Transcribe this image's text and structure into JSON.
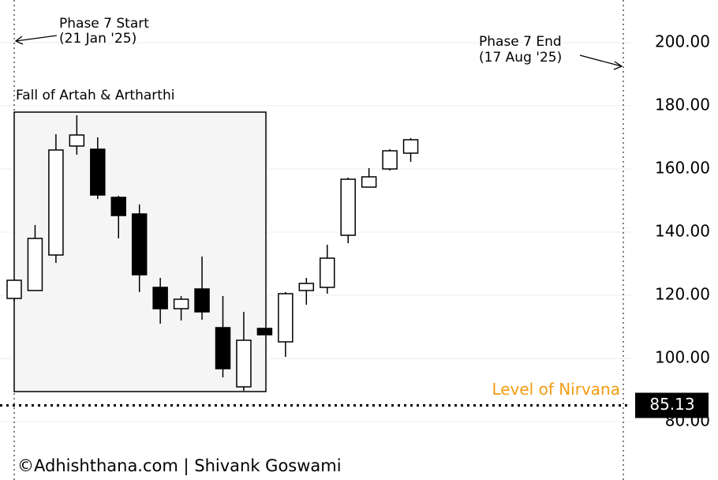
{
  "chart_data": {
    "type": "candlestick",
    "categories": [
      null,
      null,
      null,
      null,
      null,
      null,
      null,
      null,
      null,
      null,
      null,
      null,
      null,
      null,
      null,
      null,
      null,
      null,
      null,
      null
    ],
    "open": [
      119,
      121.5,
      132.75,
      167.25,
      166.25,
      151,
      145.75,
      122.5,
      115.75,
      122,
      109.75,
      91,
      109.5,
      105.25,
      121.5,
      122.5,
      139,
      154.25,
      160,
      165
    ],
    "high": [
      125,
      142.25,
      171,
      177,
      170,
      151.5,
      148.75,
      125.5,
      119.75,
      132.25,
      119.75,
      114.75,
      109.5,
      121,
      125.5,
      136,
      157.25,
      160.25,
      166.25,
      169.75
    ],
    "low": [
      118,
      121.5,
      130.25,
      164.5,
      150.5,
      138,
      121,
      111,
      112,
      112.25,
      94,
      89.75,
      107.5,
      100.5,
      117,
      120.5,
      136.5,
      154.25,
      159.5,
      162.25
    ],
    "close": [
      124.75,
      138,
      166,
      170.75,
      151.75,
      145.25,
      126.5,
      115.75,
      118.75,
      114.75,
      96.75,
      105.75,
      107.5,
      120.5,
      123.75,
      131.75,
      156.75,
      157.5,
      165.75,
      169.25
    ],
    "up_color": "#ffffff",
    "down_color": "#000000",
    "ylim": [
      61.5,
      213.5
    ],
    "yticks": [
      {
        "value": 80,
        "label": "80.00"
      },
      {
        "value": 100,
        "label": "100.00"
      },
      {
        "value": 120,
        "label": "120.00"
      },
      {
        "value": 140,
        "label": "140.00"
      },
      {
        "value": 160,
        "label": "160.00"
      },
      {
        "value": 180,
        "label": "180.00"
      },
      {
        "value": 200,
        "label": "200.00"
      }
    ],
    "grid": true,
    "highlight_label": "Fall of Artah & Artharthi",
    "level": {
      "label": "Level of Nirvana",
      "value": 85.13,
      "color": "#f39c12"
    },
    "phase_start": {
      "title": "Phase 7 Start",
      "date": "(21 Jan '25)"
    },
    "phase_end": {
      "title": "Phase 7 End",
      "date": "(17 Aug '25)"
    },
    "footer": "©Adhishthana.com | Shivank Goswami"
  }
}
